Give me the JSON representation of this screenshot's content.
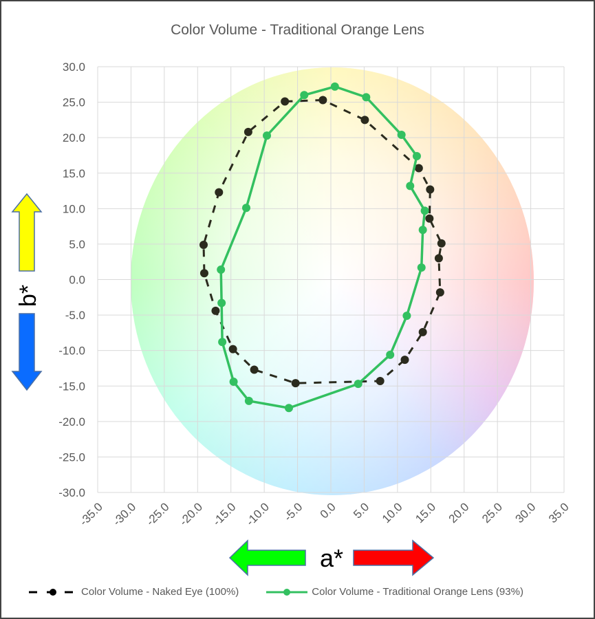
{
  "chart_data": {
    "type": "scatter",
    "title": "Color Volume - Traditional Orange Lens",
    "xlabel": "a*",
    "ylabel": "b*",
    "xlim": [
      -35,
      35
    ],
    "ylim": [
      -30,
      30
    ],
    "grid": true,
    "legend": "bottom",
    "xticks": [
      -35,
      -30,
      -25,
      -20,
      -15,
      -10,
      -5,
      0,
      5,
      10,
      15,
      20,
      25,
      30,
      35
    ],
    "yticks": [
      30,
      25,
      20,
      15,
      10,
      5,
      0,
      -5,
      -10,
      -15,
      -20,
      -25,
      -30
    ],
    "series": [
      {
        "name": "Color Volume - Naked Eye (100%)",
        "color": "#2b2b1e",
        "style": "dashed",
        "closed": true,
        "points": [
          [
            -1.2,
            25.3
          ],
          [
            -6.9,
            25.1
          ],
          [
            -12.4,
            20.8
          ],
          [
            -16.8,
            12.3
          ],
          [
            -19.1,
            4.9
          ],
          [
            -19.0,
            0.9
          ],
          [
            -17.3,
            -4.4
          ],
          [
            -14.7,
            -9.8
          ],
          [
            -11.5,
            -12.7
          ],
          [
            -5.3,
            -14.6
          ],
          [
            7.4,
            -14.3
          ],
          [
            11.1,
            -11.3
          ],
          [
            13.8,
            -7.4
          ],
          [
            16.4,
            -1.8
          ],
          [
            16.2,
            3.0
          ],
          [
            16.6,
            5.1
          ],
          [
            14.8,
            8.6
          ],
          [
            14.9,
            12.7
          ],
          [
            13.2,
            15.7
          ],
          [
            5.1,
            22.5
          ]
        ]
      },
      {
        "name": "Color Volume - Traditional Orange Lens (93%)",
        "color": "#33c060",
        "style": "solid",
        "closed": true,
        "points": [
          [
            0.6,
            27.2
          ],
          [
            5.3,
            25.7
          ],
          [
            10.6,
            20.4
          ],
          [
            12.9,
            17.4
          ],
          [
            11.9,
            13.2
          ],
          [
            14.1,
            9.7
          ],
          [
            13.8,
            7.0
          ],
          [
            13.6,
            1.7
          ],
          [
            11.4,
            -5.1
          ],
          [
            8.9,
            -10.6
          ],
          [
            4.1,
            -14.7
          ],
          [
            -6.3,
            -18.1
          ],
          [
            -12.3,
            -17.1
          ],
          [
            -14.6,
            -14.4
          ],
          [
            -16.3,
            -8.8
          ],
          [
            -16.4,
            -3.3
          ],
          [
            -16.5,
            1.4
          ],
          [
            -12.7,
            10.1
          ],
          [
            -9.6,
            20.3
          ],
          [
            -4.0,
            26.0
          ]
        ]
      }
    ]
  }
}
